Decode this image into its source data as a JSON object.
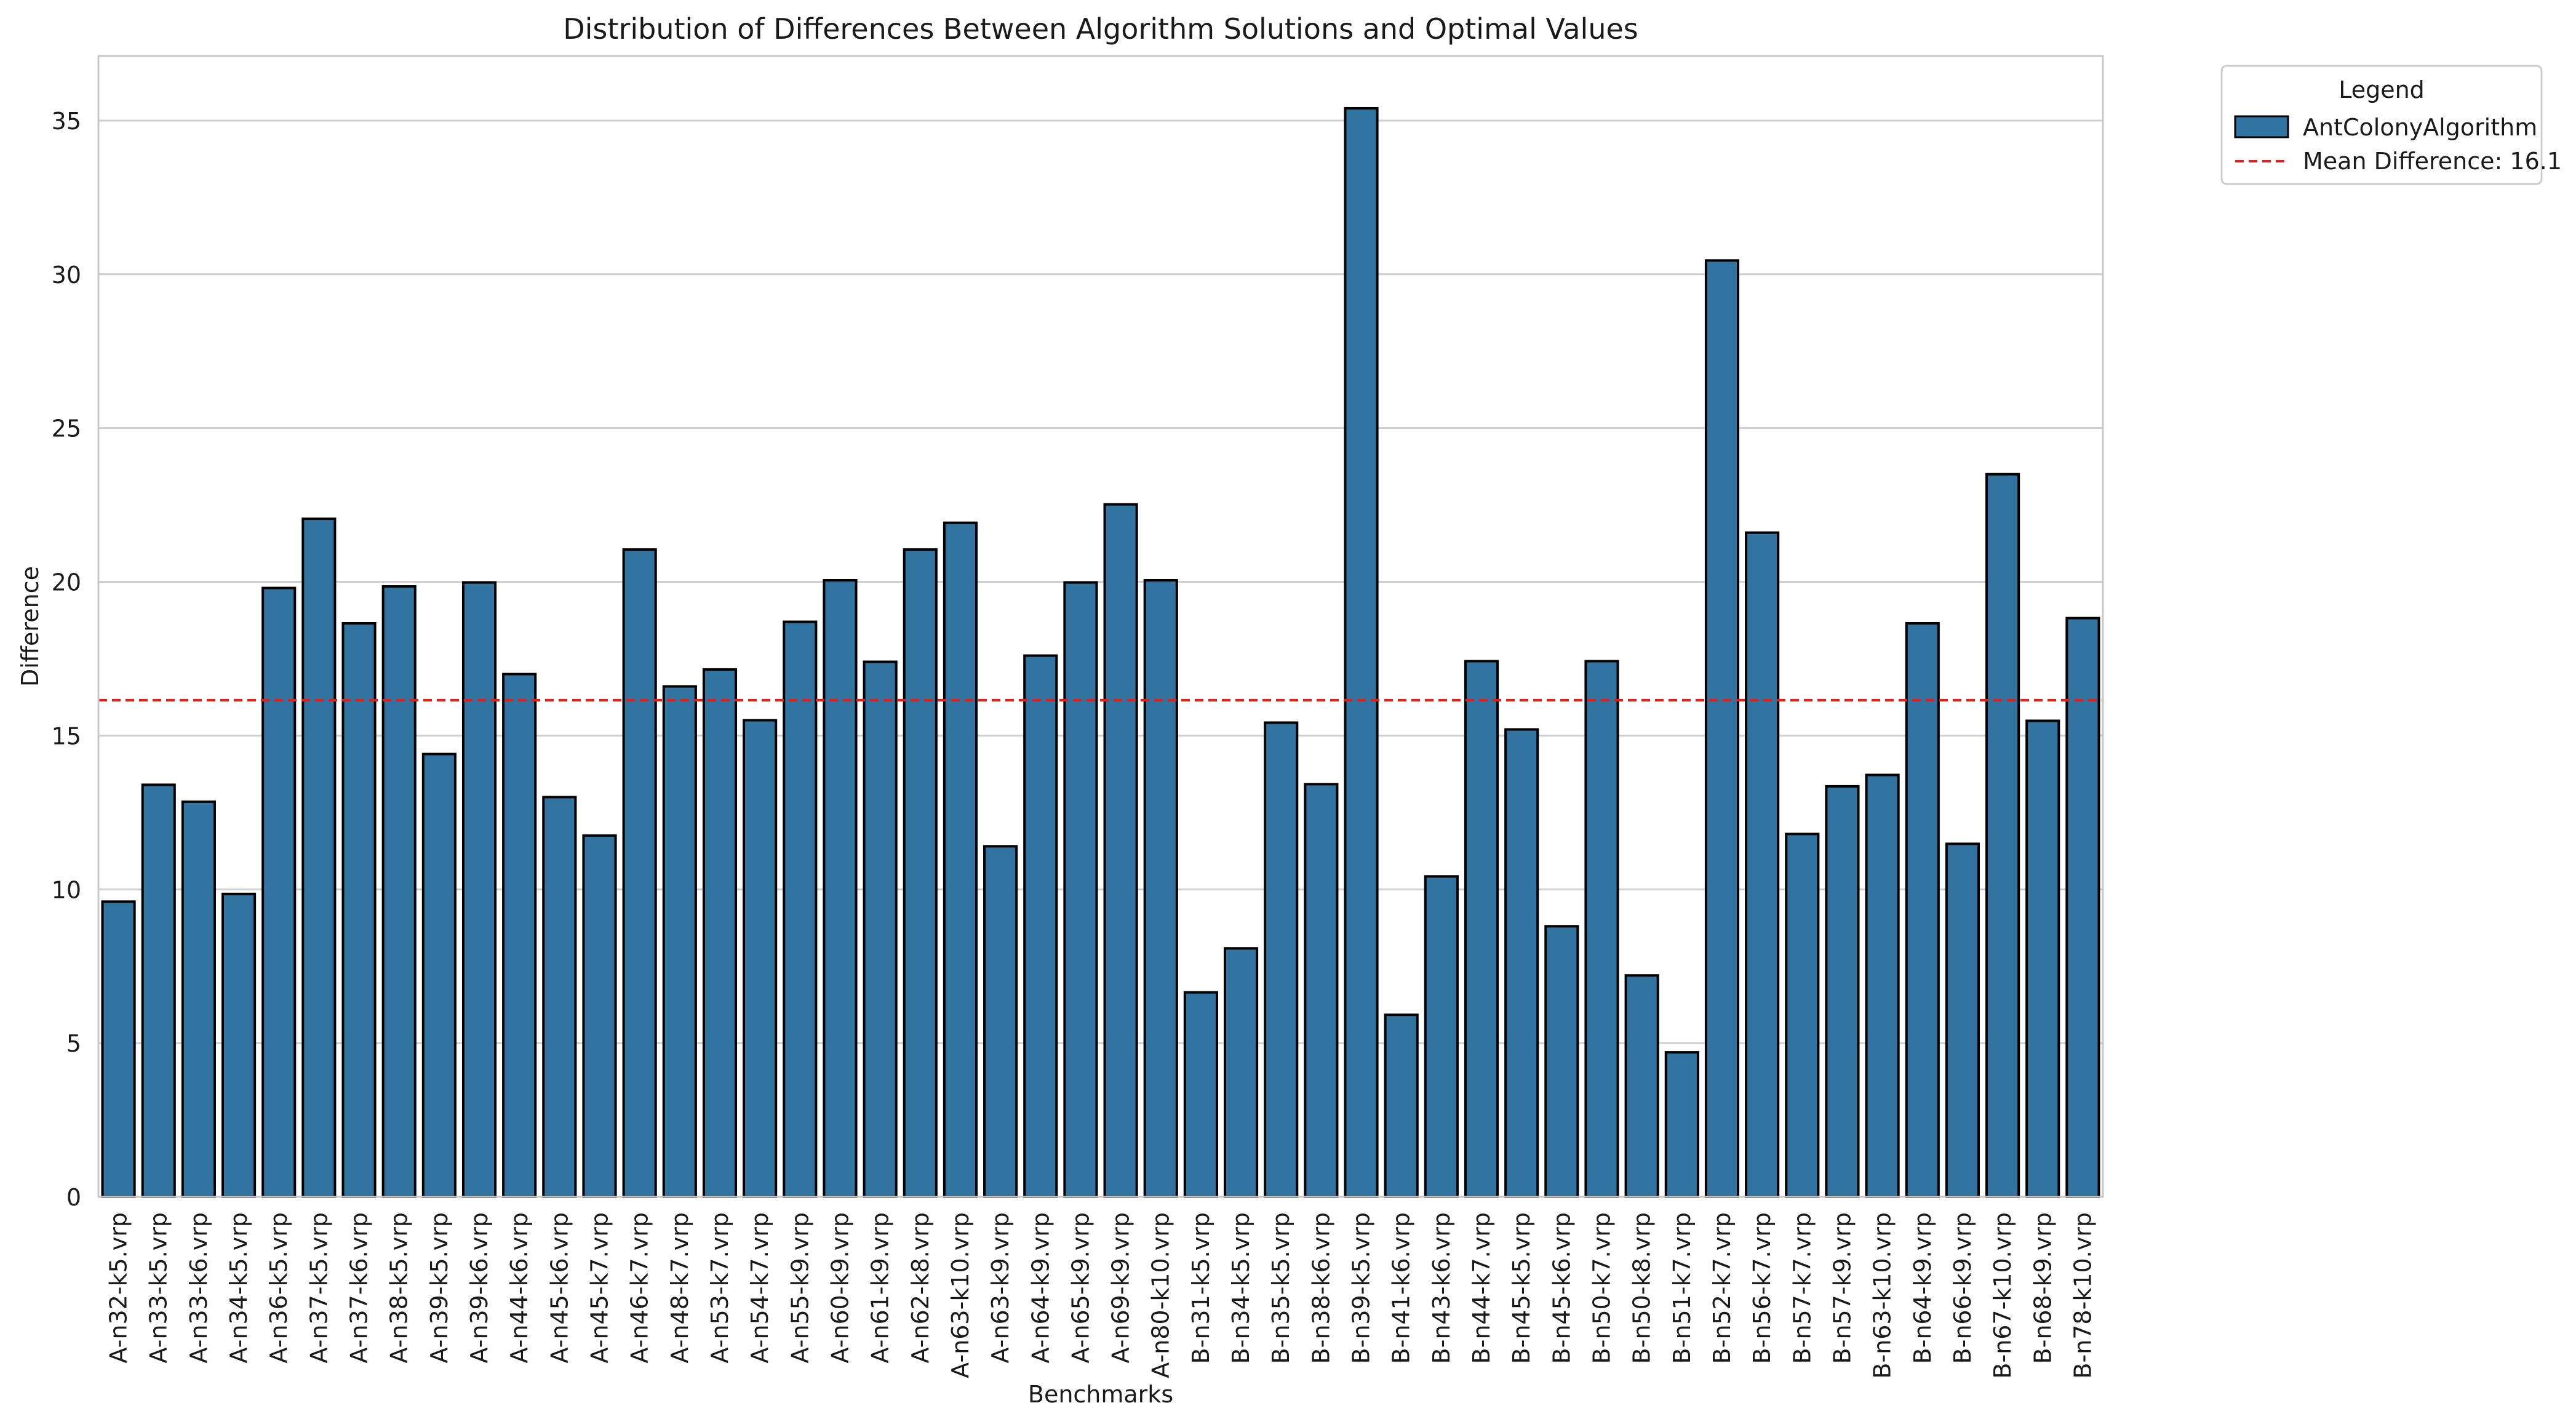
{
  "chart_data": {
    "type": "bar",
    "title": "Distribution of Differences Between Algorithm Solutions and Optimal Values",
    "xlabel": "Benchmarks",
    "ylabel": "Difference",
    "ylim": [
      0,
      37.1
    ],
    "yticks": [
      0,
      5,
      10,
      15,
      20,
      25,
      30,
      35
    ],
    "grid": true,
    "legend_placement": "outside top-right",
    "legend_title": "Legend",
    "bar_color": "#3274a1",
    "bar_edge_color": "#000000",
    "mean_line_color": "#e0201b",
    "categories": [
      "A-n32-k5.vrp",
      "A-n33-k5.vrp",
      "A-n33-k6.vrp",
      "A-n34-k5.vrp",
      "A-n36-k5.vrp",
      "A-n37-k5.vrp",
      "A-n37-k6.vrp",
      "A-n38-k5.vrp",
      "A-n39-k5.vrp",
      "A-n39-k6.vrp",
      "A-n44-k6.vrp",
      "A-n45-k6.vrp",
      "A-n45-k7.vrp",
      "A-n46-k7.vrp",
      "A-n48-k7.vrp",
      "A-n53-k7.vrp",
      "A-n54-k7.vrp",
      "A-n55-k9.vrp",
      "A-n60-k9.vrp",
      "A-n61-k9.vrp",
      "A-n62-k8.vrp",
      "A-n63-k10.vrp",
      "A-n63-k9.vrp",
      "A-n64-k9.vrp",
      "A-n65-k9.vrp",
      "A-n69-k9.vrp",
      "A-n80-k10.vrp",
      "B-n31-k5.vrp",
      "B-n34-k5.vrp",
      "B-n35-k5.vrp",
      "B-n38-k6.vrp",
      "B-n39-k5.vrp",
      "B-n41-k6.vrp",
      "B-n43-k6.vrp",
      "B-n44-k7.vrp",
      "B-n45-k5.vrp",
      "B-n45-k6.vrp",
      "B-n50-k7.vrp",
      "B-n50-k8.vrp",
      "B-n51-k7.vrp",
      "B-n52-k7.vrp",
      "B-n56-k7.vrp",
      "B-n57-k7.vrp",
      "B-n57-k9.vrp",
      "B-n63-k10.vrp",
      "B-n64-k9.vrp",
      "B-n66-k9.vrp",
      "B-n67-k10.vrp",
      "B-n68-k9.vrp",
      "B-n78-k10.vrp"
    ],
    "series": [
      {
        "name": "AntColonyAlgorithm",
        "values": [
          9.6,
          13.4,
          12.85,
          9.85,
          19.8,
          22.05,
          18.65,
          19.85,
          14.4,
          19.98,
          17.0,
          13.0,
          11.75,
          21.05,
          16.6,
          17.15,
          15.5,
          18.7,
          20.05,
          17.4,
          21.05,
          21.92,
          11.4,
          17.6,
          19.98,
          22.52,
          20.05,
          6.65,
          8.08,
          15.42,
          13.42,
          35.4,
          5.92,
          10.42,
          17.42,
          15.2,
          8.8,
          17.42,
          7.2,
          4.7,
          30.45,
          21.6,
          11.8,
          13.35,
          13.72,
          18.65,
          11.48,
          23.5,
          15.48,
          18.82
        ]
      }
    ],
    "mean_line": {
      "value": 16.15,
      "label": "Mean Difference: 16.1"
    }
  }
}
